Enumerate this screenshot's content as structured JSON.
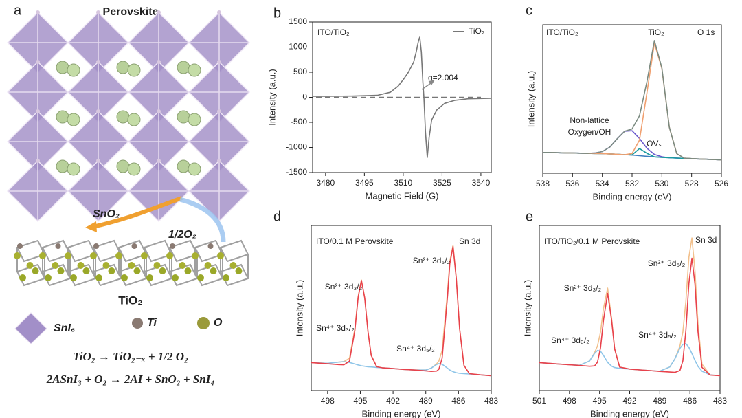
{
  "diagram": {
    "panel": "a",
    "title": "Perovskite",
    "labels": [
      "SnO₂",
      "1/2O₂",
      "TiO₂"
    ],
    "legend": [
      "SnI₆",
      "Ti",
      "O"
    ],
    "equations": [
      "TiO₂ → TiO₂₋ₓ + 1/2 O₂",
      "2ASnI₃ + O₂ → 2AI + SnO₂ + SnI₄"
    ]
  },
  "chart_data": [
    {
      "type": "line",
      "panel": "b",
      "xlabel": "Magnetic Field (G)",
      "ylabel": "Intensity (a.u.)",
      "xlim": [
        3475,
        3544
      ],
      "xticks": [
        3480,
        3495,
        3510,
        3525,
        3540
      ],
      "ylim": [
        -1500,
        1500
      ],
      "yticks": [
        -1500,
        -1000,
        -500,
        0,
        500,
        1000,
        1500
      ],
      "hline": 0,
      "legend": "upper right",
      "annotations": [
        "ITO/TiO₂",
        "g=2.004"
      ],
      "x": [
        3475,
        3480,
        3490,
        3500,
        3505,
        3508,
        3510,
        3512,
        3514,
        3515,
        3516,
        3516.4,
        3517,
        3517.6,
        3518,
        3518.6,
        3519.3,
        3520,
        3521,
        3523,
        3526,
        3530,
        3535,
        3544
      ],
      "series": [
        {
          "name": "TiO₂",
          "color": "#777777",
          "values": [
            20,
            20,
            25,
            40,
            100,
            220,
            350,
            500,
            700,
            900,
            1150,
            1200,
            900,
            300,
            0,
            -700,
            -1200,
            -800,
            -450,
            -250,
            -120,
            -60,
            -30,
            -20
          ]
        }
      ]
    },
    {
      "type": "line",
      "panel": "c",
      "xlabel": "Binding energy (eV)",
      "ylabel": "Intensity (a.u.)",
      "xlim": [
        538,
        526
      ],
      "xticks": [
        538,
        536,
        534,
        532,
        530,
        528,
        526
      ],
      "ylim": [
        0,
        100
      ],
      "annotations": [
        "ITO/TiO₂",
        "TiO₂",
        "O 1s",
        "Non-lattice",
        "Oxygen/OH",
        "OVₛ"
      ],
      "x": [
        538,
        537.5,
        537,
        536.5,
        536,
        535.5,
        535,
        534.5,
        534,
        533.5,
        533,
        532.5,
        532,
        531.5,
        531,
        530.5,
        530,
        529.5,
        529,
        528.5,
        528,
        527.5,
        527,
        526.5,
        526
      ],
      "series": [
        {
          "color": "#3f7fbf",
          "values": [
            14,
            14,
            13.8,
            13.7,
            13.6,
            13.5,
            13.4,
            13.3,
            13.2,
            13,
            12.8,
            12.5,
            12.2,
            11.8,
            11.4,
            11,
            10.7,
            10.4,
            10.2,
            10,
            9.8,
            9.6,
            9.4,
            9.2,
            9
          ]
        },
        {
          "color": "#6a5acd",
          "values": [
            14,
            14,
            13.8,
            13.7,
            13.6,
            13.5,
            13.4,
            13.6,
            14.6,
            17.6,
            23.2,
            28.3,
            28.6,
            23.4,
            16.8,
            12.7,
            11.1,
            10.4,
            10.2,
            10,
            9.8,
            9.6,
            9.4,
            9.2,
            9
          ]
        },
        {
          "color": "#1a9aa0",
          "values": [
            14,
            14,
            13.8,
            13.7,
            13.6,
            13.5,
            13.4,
            13.3,
            13.2,
            13,
            12.8,
            12.5,
            12.3,
            16.6,
            13.4,
            11,
            10.7,
            10.4,
            10.2,
            10,
            9.8,
            9.6,
            9.4,
            9.2,
            9
          ]
        },
        {
          "color": "#f0a070",
          "values": [
            14,
            14,
            13.8,
            13.7,
            13.6,
            13.5,
            13.4,
            13.3,
            13.2,
            13,
            12.8,
            12.5,
            13.3,
            22.3,
            54.4,
            87.7,
            70.7,
            31,
            13.2,
            10.2,
            9.8,
            9.6,
            9.4,
            9.2,
            9
          ]
        },
        {
          "color": "#7a8a80",
          "values": [
            14,
            14,
            13.8,
            13.7,
            13.6,
            13.5,
            13.4,
            13.6,
            14.6,
            17.6,
            23.2,
            28.3,
            29.8,
            38.7,
            61.8,
            89.4,
            71.1,
            31,
            13.2,
            10.2,
            9.8,
            9.6,
            9.4,
            9.2,
            9
          ]
        }
      ]
    },
    {
      "type": "line",
      "panel": "d",
      "xlabel": "Binding energy (eV)",
      "ylabel": "Intensity (a.u.)",
      "xlim": [
        499.5,
        483
      ],
      "xticks": [
        498,
        495,
        492,
        489,
        486,
        483
      ],
      "ylim": [
        0,
        100
      ],
      "annotations": [
        "ITO/0.1 M Perovskite",
        "Sn 3d",
        "Sn²⁺ 3d₅/₂",
        "Sn²⁺ 3d₃/₂",
        "Sn⁴⁺ 3d₃/₂",
        "Sn⁴⁺ 3d₅/₂"
      ],
      "x": [
        499.5,
        498,
        497,
        496.5,
        496,
        495.5,
        495.2,
        494.9,
        494.6,
        494.3,
        494,
        493.5,
        493,
        492,
        491,
        490,
        489,
        488.5,
        488,
        487.8,
        487.5,
        487,
        486.8,
        486.5,
        486.2,
        485.9,
        485.5,
        485,
        484,
        483
      ],
      "series": [
        {
          "color": "#f2c08c",
          "values": [
            16.9,
            16.5,
            17.2,
            17.6,
            19.6,
            37.4,
            57.1,
            67.0,
            56.3,
            35.7,
            21.3,
            14.4,
            13.8,
            13.3,
            12.8,
            12.4,
            12.4,
            13.6,
            16.2,
            17.9,
            24.2,
            60.2,
            78.4,
            87.9,
            67.8,
            37.4,
            15.3,
            10.2,
            9.5,
            9.0
          ]
        },
        {
          "color": "#8ec5e8",
          "values": [
            16.9,
            16.5,
            17.2,
            17.5,
            17.0,
            16.1,
            15.5,
            15.0,
            14.7,
            14.4,
            14.3,
            14.0,
            13.8,
            13.3,
            12.8,
            12.4,
            12.4,
            13.6,
            15.8,
            16.3,
            15.9,
            13.5,
            12.4,
            11.4,
            10.8,
            10.4,
            10.2,
            10.0,
            9.5,
            9.0
          ]
        },
        {
          "color": "#e8414b",
          "values": [
            16.9,
            16.2,
            15.7,
            15.6,
            17.8,
            36.3,
            56.5,
            66.7,
            56.2,
            35.7,
            21.3,
            14.4,
            13.8,
            13.3,
            12.8,
            12.4,
            11.9,
            11.6,
            11.8,
            12.9,
            19.5,
            57.7,
            76.8,
            87.2,
            67.6,
            37.4,
            15.3,
            10.2,
            9.5,
            9.0
          ]
        }
      ]
    },
    {
      "type": "line",
      "panel": "e",
      "xlabel": "Binding energy (eV)",
      "ylabel": "Intensity (a.u.)",
      "xlim": [
        501,
        483
      ],
      "xticks": [
        501,
        498,
        495,
        492,
        489,
        486,
        483
      ],
      "ylim": [
        0,
        100
      ],
      "annotations": [
        "ITO/TiO₂/0.1 M Perovskite",
        "Sn 3d",
        "Sn²⁺ 3d₅/₂",
        "Sn²⁺ 3d₃/₂",
        "Sn⁴⁺ 3d₃/₂",
        "Sn⁴⁺ 3d₅/₂"
      ],
      "x": [
        501,
        499,
        497,
        496,
        495.5,
        495.2,
        494.9,
        494.6,
        494.2,
        493.8,
        493.5,
        493,
        492,
        491,
        490,
        489,
        488,
        487.5,
        487,
        486.7,
        486.4,
        486.1,
        485.8,
        485.5,
        485.2,
        484.8,
        484,
        483
      ],
      "series": [
        {
          "color": "#f2c08c",
          "values": [
            16.9,
            16.0,
            15.3,
            17.9,
            22.9,
            27.1,
            35.4,
            50.1,
            62.1,
            43.7,
            25.5,
            14.2,
            13.0,
            12.5,
            12.1,
            11.7,
            14.3,
            19.2,
            26.9,
            35.4,
            54.2,
            80.7,
            92.4,
            72.8,
            40.5,
            16.0,
            9.5,
            9.0
          ]
        },
        {
          "color": "#8ec5e8",
          "values": [
            16.9,
            16.0,
            15.3,
            17.9,
            22.5,
            24.3,
            23.8,
            21.2,
            17.1,
            14.8,
            13.9,
            13.4,
            13.0,
            12.5,
            12.1,
            11.7,
            14.3,
            19.2,
            25.6,
            28.0,
            28.4,
            26.2,
            22.4,
            18.3,
            14.7,
            11.7,
            9.5,
            9.0
          ]
        },
        {
          "color": "#e8414b",
          "values": [
            16.9,
            16.0,
            15.2,
            14.7,
            14.9,
            17.2,
            25.9,
            43.0,
            58.9,
            42.7,
            25.2,
            14.2,
            13.0,
            12.5,
            12.1,
            11.6,
            11.2,
            11.0,
            12.1,
            18.0,
            36.3,
            64.9,
            80.2,
            64.6,
            35.7,
            14.1,
            9.4,
            9.0
          ]
        }
      ]
    }
  ]
}
